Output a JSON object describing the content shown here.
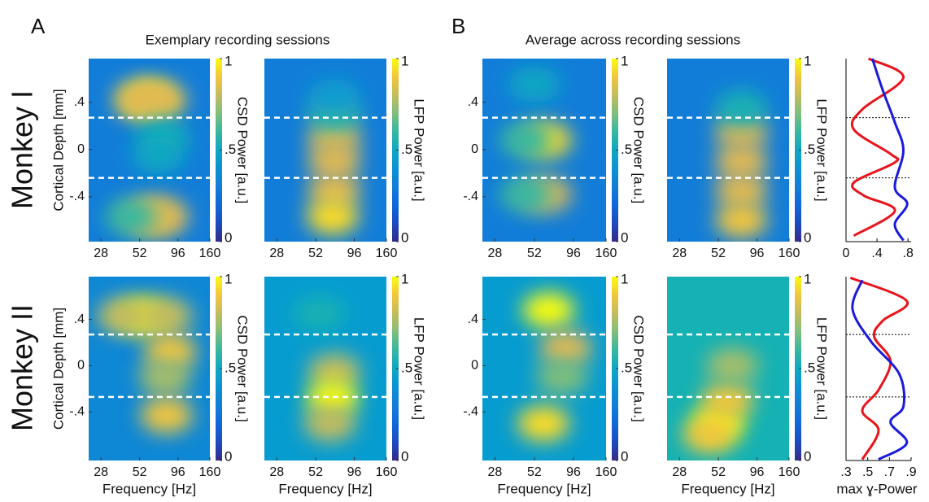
{
  "figure": {
    "panel_a": "A",
    "panel_b": "B",
    "title_a": "Exemplary recording sessions",
    "title_b": "Average across recording sessions",
    "row_1": "Monkey I",
    "row_2": "Monkey II"
  },
  "chart_data": [
    {
      "type": "heatmap",
      "ylabel": "Cortical Depth [mm]",
      "colorbar_label": "CSD Power [a.u.]",
      "log_x": true,
      "colormap": "parula",
      "xlim": [
        23,
        160
      ],
      "xticks": [
        28,
        52,
        96,
        160
      ],
      "ylim": [
        -0.78,
        0.77
      ],
      "yticks": [
        {
          "value": 0.4,
          "label": ".4"
        },
        0,
        {
          "value": -0.4,
          "label": "-.4"
        }
      ],
      "clim": [
        0,
        1
      ],
      "cticks": [
        0,
        {
          "value": 0.5,
          "label": ".5"
        },
        1
      ],
      "background": 0.3,
      "boundaries": [
        0.27,
        -0.24
      ],
      "hotspots": [
        {
          "freq": 60,
          "depth": 0.42,
          "value": 1.0
        },
        {
          "freq": 52,
          "depth": 0.42,
          "value": 0.85
        },
        {
          "freq": 72,
          "depth": 0.42,
          "value": 0.85
        },
        {
          "freq": 75,
          "depth": 0.1,
          "value": 0.55
        },
        {
          "freq": 70,
          "depth": -0.05,
          "value": 0.5
        },
        {
          "freq": 60,
          "depth": -0.57,
          "value": 0.9
        },
        {
          "freq": 75,
          "depth": -0.57,
          "value": 0.85
        },
        {
          "freq": 45,
          "depth": -0.57,
          "value": 0.6
        }
      ]
    },
    {
      "type": "heatmap",
      "colorbar_label": "LFP Power [a.u.]",
      "log_x": true,
      "colormap": "parula",
      "xlim": [
        23,
        160
      ],
      "xticks": [
        28,
        52,
        96,
        160
      ],
      "ylim": [
        -0.78,
        0.77
      ],
      "clim": [
        0,
        1
      ],
      "cticks": [
        0,
        {
          "value": 0.5,
          "label": ".5"
        },
        1
      ],
      "background": 0.3,
      "boundaries": [
        0.27,
        -0.24
      ],
      "hotspots": [
        {
          "freq": 70,
          "depth": 0.1,
          "value": 0.85
        },
        {
          "freq": 70,
          "depth": -0.1,
          "value": 0.85
        },
        {
          "freq": 70,
          "depth": -0.35,
          "value": 0.85
        },
        {
          "freq": 68,
          "depth": -0.57,
          "value": 0.95
        },
        {
          "freq": 70,
          "depth": 0.3,
          "value": 0.6
        },
        {
          "freq": 70,
          "depth": 0.45,
          "value": 0.45
        }
      ]
    },
    {
      "type": "heatmap",
      "colorbar_label": "CSD Power [a.u.]",
      "log_x": true,
      "colormap": "parula",
      "xlim": [
        23,
        160
      ],
      "xticks": [
        28,
        52,
        96,
        160
      ],
      "ylim": [
        -0.78,
        0.77
      ],
      "yticks": [
        {
          "value": 0.4,
          "label": ".4"
        },
        0,
        {
          "value": -0.4,
          "label": "-.4"
        }
      ],
      "clim": [
        0,
        1
      ],
      "cticks": [
        0,
        {
          "value": 0.5,
          "label": ".5"
        },
        1
      ],
      "background": 0.3,
      "boundaries": [
        0.27,
        -0.24
      ],
      "hotspots": [
        {
          "freq": 52,
          "depth": 0.55,
          "value": 0.5
        },
        {
          "freq": 62,
          "depth": 0.08,
          "value": 0.95
        },
        {
          "freq": 62,
          "depth": -0.38,
          "value": 0.85
        },
        {
          "freq": 45,
          "depth": -0.38,
          "value": 0.6
        },
        {
          "freq": 45,
          "depth": 0.08,
          "value": 0.6
        }
      ]
    },
    {
      "type": "heatmap",
      "colorbar_label": "LFP Power [a.u.]",
      "log_x": true,
      "colormap": "parula",
      "xlim": [
        23,
        160
      ],
      "xticks": [
        28,
        52,
        96,
        160
      ],
      "ylim": [
        -0.78,
        0.77
      ],
      "clim": [
        0,
        1
      ],
      "cticks": [
        0,
        {
          "value": 0.5,
          "label": ".5"
        },
        1
      ],
      "background": 0.3,
      "boundaries": [
        0.27,
        -0.24
      ],
      "hotspots": [
        {
          "freq": 75,
          "depth": 0.15,
          "value": 0.85
        },
        {
          "freq": 75,
          "depth": -0.1,
          "value": 0.85
        },
        {
          "freq": 75,
          "depth": -0.35,
          "value": 0.85
        },
        {
          "freq": 75,
          "depth": -0.6,
          "value": 0.9
        },
        {
          "freq": 75,
          "depth": 0.35,
          "value": 0.55
        }
      ]
    },
    {
      "type": "profile",
      "xlim": [
        0,
        0.84
      ],
      "xticks": [
        0,
        {
          "value": 0.4,
          "label": ".4"
        },
        {
          "value": 0.8,
          "label": ".8"
        }
      ],
      "ylim": [
        -0.78,
        0.77
      ],
      "boundaries": [
        0.27,
        -0.24
      ],
      "series": [
        {
          "color": "#e8141c",
          "depth": [
            0.77,
            0.61,
            0.34,
            0.17,
            -0.04,
            -0.11,
            -0.28,
            -0.39,
            -0.52,
            -0.73
          ],
          "values": [
            0.29,
            0.74,
            0.21,
            0.1,
            0.58,
            0.63,
            0.1,
            0.23,
            0.63,
            0.1
          ]
        },
        {
          "color": "#1a1adc",
          "depth": [
            0.77,
            0.51,
            0.23,
            -0.01,
            -0.32,
            -0.46,
            -0.63,
            -0.77
          ],
          "values": [
            0.34,
            0.47,
            0.63,
            0.74,
            0.63,
            0.79,
            0.63,
            0.74
          ]
        }
      ]
    },
    {
      "type": "heatmap",
      "ylabel": "Cortical Depth [mm]",
      "xlabel": "Frequency [Hz]",
      "colorbar_label": "CSD Power [a.u.]",
      "log_x": true,
      "colormap": "parula",
      "xlim": [
        23,
        160
      ],
      "xticks": [
        28,
        52,
        96,
        160
      ],
      "ylim": [
        -0.82,
        0.77
      ],
      "yticks": [
        {
          "value": 0.4,
          "label": ".4"
        },
        0,
        {
          "value": -0.4,
          "label": "-.4"
        }
      ],
      "clim": [
        0,
        1
      ],
      "cticks": [
        0,
        {
          "value": 0.5,
          "label": ".5"
        },
        1
      ],
      "background": 0.35,
      "boundaries": [
        0.27,
        -0.27
      ],
      "hotspots": [
        {
          "freq": 55,
          "depth": 0.43,
          "value": 1.0
        },
        {
          "freq": 40,
          "depth": 0.43,
          "value": 0.8
        },
        {
          "freq": 80,
          "depth": 0.43,
          "value": 0.8
        },
        {
          "freq": 85,
          "depth": 0.12,
          "value": 0.9
        },
        {
          "freq": 78,
          "depth": -0.1,
          "value": 0.75
        },
        {
          "freq": 80,
          "depth": -0.43,
          "value": 0.9
        }
      ]
    },
    {
      "type": "heatmap",
      "xlabel": "Frequency [Hz]",
      "colorbar_label": "LFP Power [a.u.]",
      "log_x": true,
      "colormap": "parula",
      "xlim": [
        23,
        160
      ],
      "xticks": [
        28,
        52,
        96,
        160
      ],
      "ylim": [
        -0.82,
        0.77
      ],
      "clim": [
        0,
        1
      ],
      "cticks": [
        0,
        {
          "value": 0.5,
          "label": ".5"
        },
        1
      ],
      "background": 0.45,
      "boundaries": [
        0.27,
        -0.27
      ],
      "hotspots": [
        {
          "freq": 70,
          "depth": -0.05,
          "value": 0.8
        },
        {
          "freq": 68,
          "depth": -0.28,
          "value": 1.0
        },
        {
          "freq": 65,
          "depth": -0.5,
          "value": 0.8
        },
        {
          "freq": 55,
          "depth": 0.45,
          "value": 0.55
        }
      ]
    },
    {
      "type": "heatmap",
      "xlabel": "Frequency [Hz]",
      "colorbar_label": "CSD Power [a.u.]",
      "log_x": true,
      "colormap": "parula",
      "xlim": [
        23,
        160
      ],
      "xticks": [
        28,
        52,
        96,
        160
      ],
      "ylim": [
        -0.82,
        0.77
      ],
      "yticks": [
        {
          "value": 0.4,
          "label": ".4"
        },
        0,
        {
          "value": -0.4,
          "label": "-.4"
        }
      ],
      "clim": [
        0,
        1
      ],
      "cticks": [
        0,
        {
          "value": 0.5,
          "label": ".5"
        },
        1
      ],
      "background": 0.45,
      "boundaries": [
        0.27,
        -0.27
      ],
      "hotspots": [
        {
          "freq": 65,
          "depth": 0.48,
          "value": 1.0
        },
        {
          "freq": 85,
          "depth": 0.15,
          "value": 0.85
        },
        {
          "freq": 80,
          "depth": -0.1,
          "value": 0.7
        },
        {
          "freq": 60,
          "depth": -0.5,
          "value": 0.95
        }
      ]
    },
    {
      "type": "heatmap",
      "xlabel": "Frequency [Hz]",
      "colorbar_label": "LFP Power [a.u.]",
      "log_x": true,
      "colormap": "parula",
      "xlim": [
        23,
        160
      ],
      "xticks": [
        28,
        52,
        96,
        160
      ],
      "ylim": [
        -0.82,
        0.77
      ],
      "clim": [
        0,
        1
      ],
      "cticks": [
        0,
        {
          "value": 0.5,
          "label": ".5"
        },
        1
      ],
      "background": 0.55,
      "boundaries": [
        0.27,
        -0.27
      ],
      "hotspots": [
        {
          "freq": 52,
          "depth": -0.5,
          "value": 1.0
        },
        {
          "freq": 60,
          "depth": -0.3,
          "value": 0.9
        },
        {
          "freq": 65,
          "depth": 0,
          "value": 0.75
        },
        {
          "freq": 45,
          "depth": -0.6,
          "value": 0.9
        }
      ]
    },
    {
      "type": "profile",
      "xlabel": "max ɣ-Power",
      "xlim": [
        0.3,
        0.9
      ],
      "xticks": [
        {
          "value": 0.3,
          "label": ".3"
        },
        {
          "value": 0.5,
          "label": ".5"
        },
        {
          "value": 0.7,
          "label": ".7"
        },
        {
          "value": 0.9,
          "label": ".9"
        }
      ],
      "ylim": [
        -0.82,
        0.77
      ],
      "boundaries": [
        0.27,
        -0.27
      ],
      "series": [
        {
          "color": "#e8141c",
          "depth": [
            0.76,
            0.56,
            0.39,
            0.25,
            0.04,
            -0.21,
            -0.39,
            -0.56,
            -0.81
          ],
          "values": [
            0.34,
            0.86,
            0.64,
            0.56,
            0.71,
            0.6,
            0.45,
            0.6,
            0.45
          ]
        },
        {
          "color": "#1a1adc",
          "depth": [
            0.74,
            0.49,
            0.21,
            -0.07,
            -0.35,
            -0.49,
            -0.67,
            -0.81
          ],
          "values": [
            0.45,
            0.36,
            0.53,
            0.79,
            0.83,
            0.71,
            0.86,
            0.6
          ]
        }
      ]
    }
  ]
}
